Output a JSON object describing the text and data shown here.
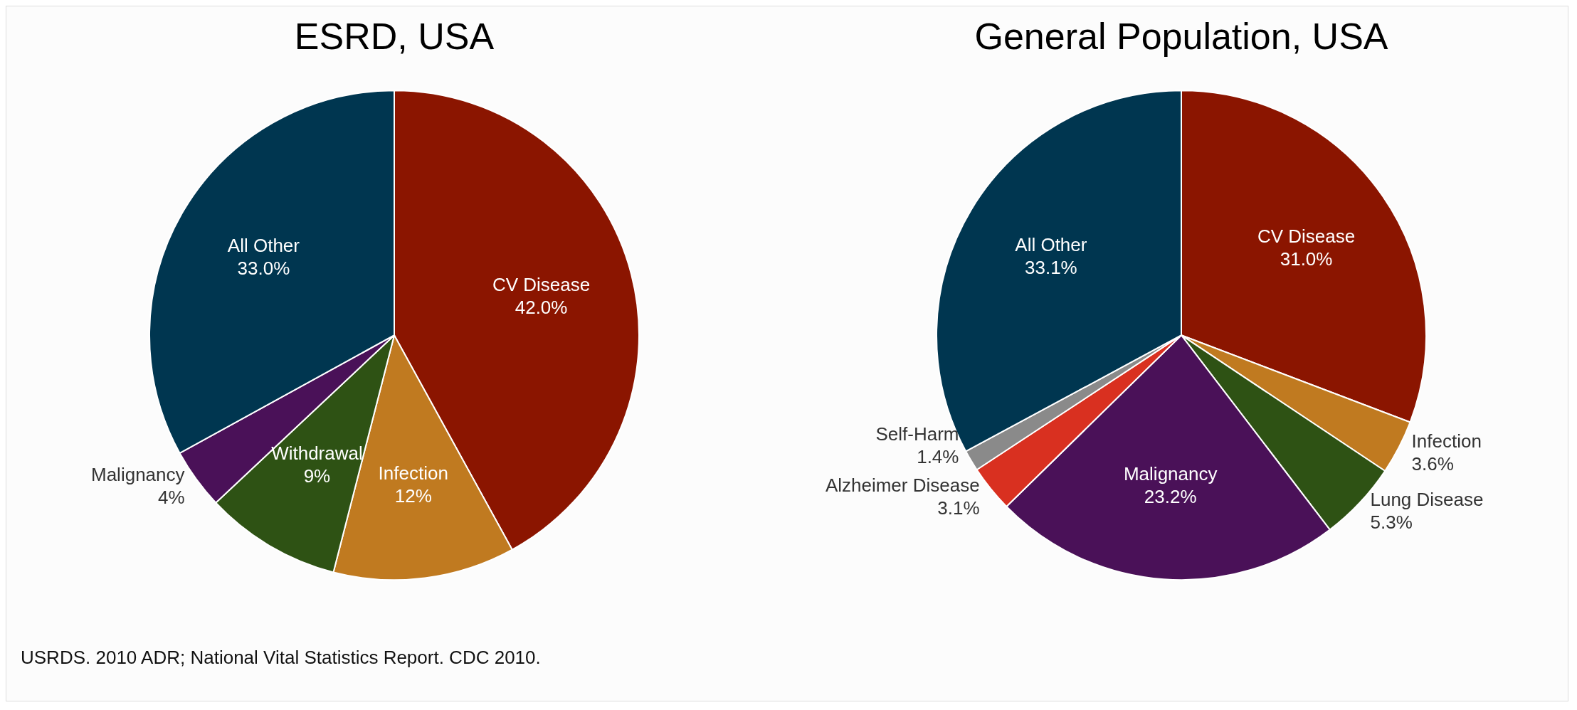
{
  "chart_data": [
    {
      "type": "pie",
      "title": "ESRD, USA",
      "categories": [
        "CV Disease",
        "Infection",
        "Withdrawal",
        "Malignancy",
        "All Other"
      ],
      "values": [
        42,
        12,
        9,
        4,
        33
      ],
      "value_labels": [
        "42.0%",
        "12%",
        "9%",
        "4%",
        "33.0%"
      ],
      "colors": [
        "#8b1500",
        "#c07a20",
        "#2e5214",
        "#4a1158",
        "#003650"
      ],
      "legend": false,
      "annotations": [
        "USRDS. 2010 ADR; National Vital Statistics Report. CDC 2010."
      ]
    },
    {
      "type": "pie",
      "title": "General Population, USA",
      "categories": [
        "CV Disease",
        "Infection",
        "Lung Disease",
        "Malignancy",
        "Alzheimer Disease",
        "Self-Harm",
        "All Other"
      ],
      "values": [
        31.0,
        3.6,
        5.3,
        23.2,
        3.1,
        1.4,
        33.1
      ],
      "value_labels": [
        "31.0%",
        "3.6%",
        "5.3%",
        "23.2%",
        "3.1%",
        "1.4%",
        "33.1%"
      ],
      "colors": [
        "#8b1500",
        "#c07a20",
        "#2e5214",
        "#4a1158",
        "#d93020",
        "#8a8a8a",
        "#003650"
      ],
      "legend": false
    }
  ]
}
